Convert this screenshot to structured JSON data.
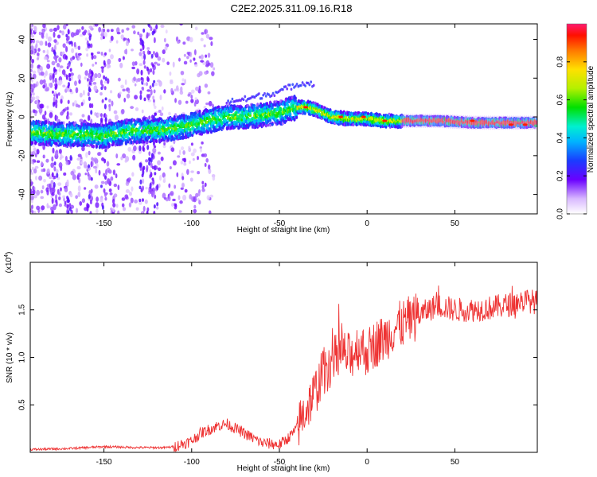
{
  "title": "C2E2.2025.311.09.16.R18",
  "colors": {
    "signal": "#ee3333",
    "frame": "#000000"
  },
  "chart_data": [
    {
      "type": "heatmap",
      "name": "spectrogram",
      "xlabel": "Height of straight line (km)",
      "ylabel": "Frequency (Hz)",
      "xlim": [
        -192,
        97
      ],
      "ylim": [
        -50,
        48
      ],
      "xticks": [
        -150,
        -100,
        -50,
        0,
        50
      ],
      "xtick_labels": [
        "-150",
        "-100",
        "-50",
        "0",
        "50"
      ],
      "yticks": [
        -40,
        -20,
        0,
        20,
        40
      ],
      "ytick_labels": [
        "-40",
        "-20",
        "0",
        "20",
        "40"
      ],
      "ridge": {
        "x": [
          -192,
          -175,
          -160,
          -150,
          -140,
          -130,
          -120,
          -110,
          -100,
          -90,
          -80,
          -70,
          -60,
          -50,
          -40,
          -35,
          -30,
          -20,
          -10,
          0,
          10,
          20,
          40,
          60,
          80,
          97
        ],
        "frequency": [
          -8,
          -9,
          -9,
          -10,
          -8,
          -7,
          -7,
          -6,
          -4,
          -2,
          0,
          0,
          1,
          2,
          5,
          5,
          4,
          0,
          -1,
          -1,
          -2,
          -2,
          -2,
          -3,
          -3,
          -3
        ]
      },
      "colorbar": {
        "label": "Normalized spectral amplitude",
        "range": [
          0,
          1
        ],
        "ticks": [
          0.0,
          0.2,
          0.4,
          0.6,
          0.8
        ],
        "tick_labels": [
          "0.0",
          "0.2",
          "0.4",
          "0.6",
          "0.8"
        ]
      }
    },
    {
      "type": "line",
      "name": "snr",
      "xlabel": "Height of straight line (km)",
      "ylabel": "SNR (10 * v/v)",
      "scale_label": "(x10",
      "scale_exp": "4",
      "scale_close": ")",
      "xlim": [
        -192,
        97
      ],
      "ylim": [
        0,
        2.0
      ],
      "xticks": [
        -150,
        -100,
        -50,
        0,
        50
      ],
      "xtick_labels": [
        "-150",
        "-100",
        "-50",
        "0",
        "50"
      ],
      "yticks": [
        0.5,
        1.0,
        1.5
      ],
      "ytick_labels": [
        "0.5",
        "1.0",
        "1.5"
      ],
      "series": [
        {
          "name": "SNR",
          "x": [
            -192,
            -170,
            -150,
            -130,
            -115,
            -110,
            -100,
            -95,
            -85,
            -80,
            -70,
            -60,
            -50,
            -45,
            -40,
            -35,
            -30,
            -25,
            -20,
            -15,
            -10,
            -5,
            0,
            5,
            10,
            15,
            20,
            30,
            40,
            50,
            60,
            70,
            80,
            90,
            97
          ],
          "y": [
            0.03,
            0.04,
            0.06,
            0.05,
            0.05,
            0.06,
            0.12,
            0.2,
            0.28,
            0.3,
            0.2,
            0.1,
            0.08,
            0.15,
            0.25,
            0.45,
            0.62,
            0.85,
            0.95,
            1.05,
            1.0,
            1.12,
            1.05,
            1.15,
            1.2,
            1.3,
            1.35,
            1.45,
            1.55,
            1.5,
            1.5,
            1.52,
            1.55,
            1.6,
            1.58
          ]
        }
      ]
    }
  ]
}
